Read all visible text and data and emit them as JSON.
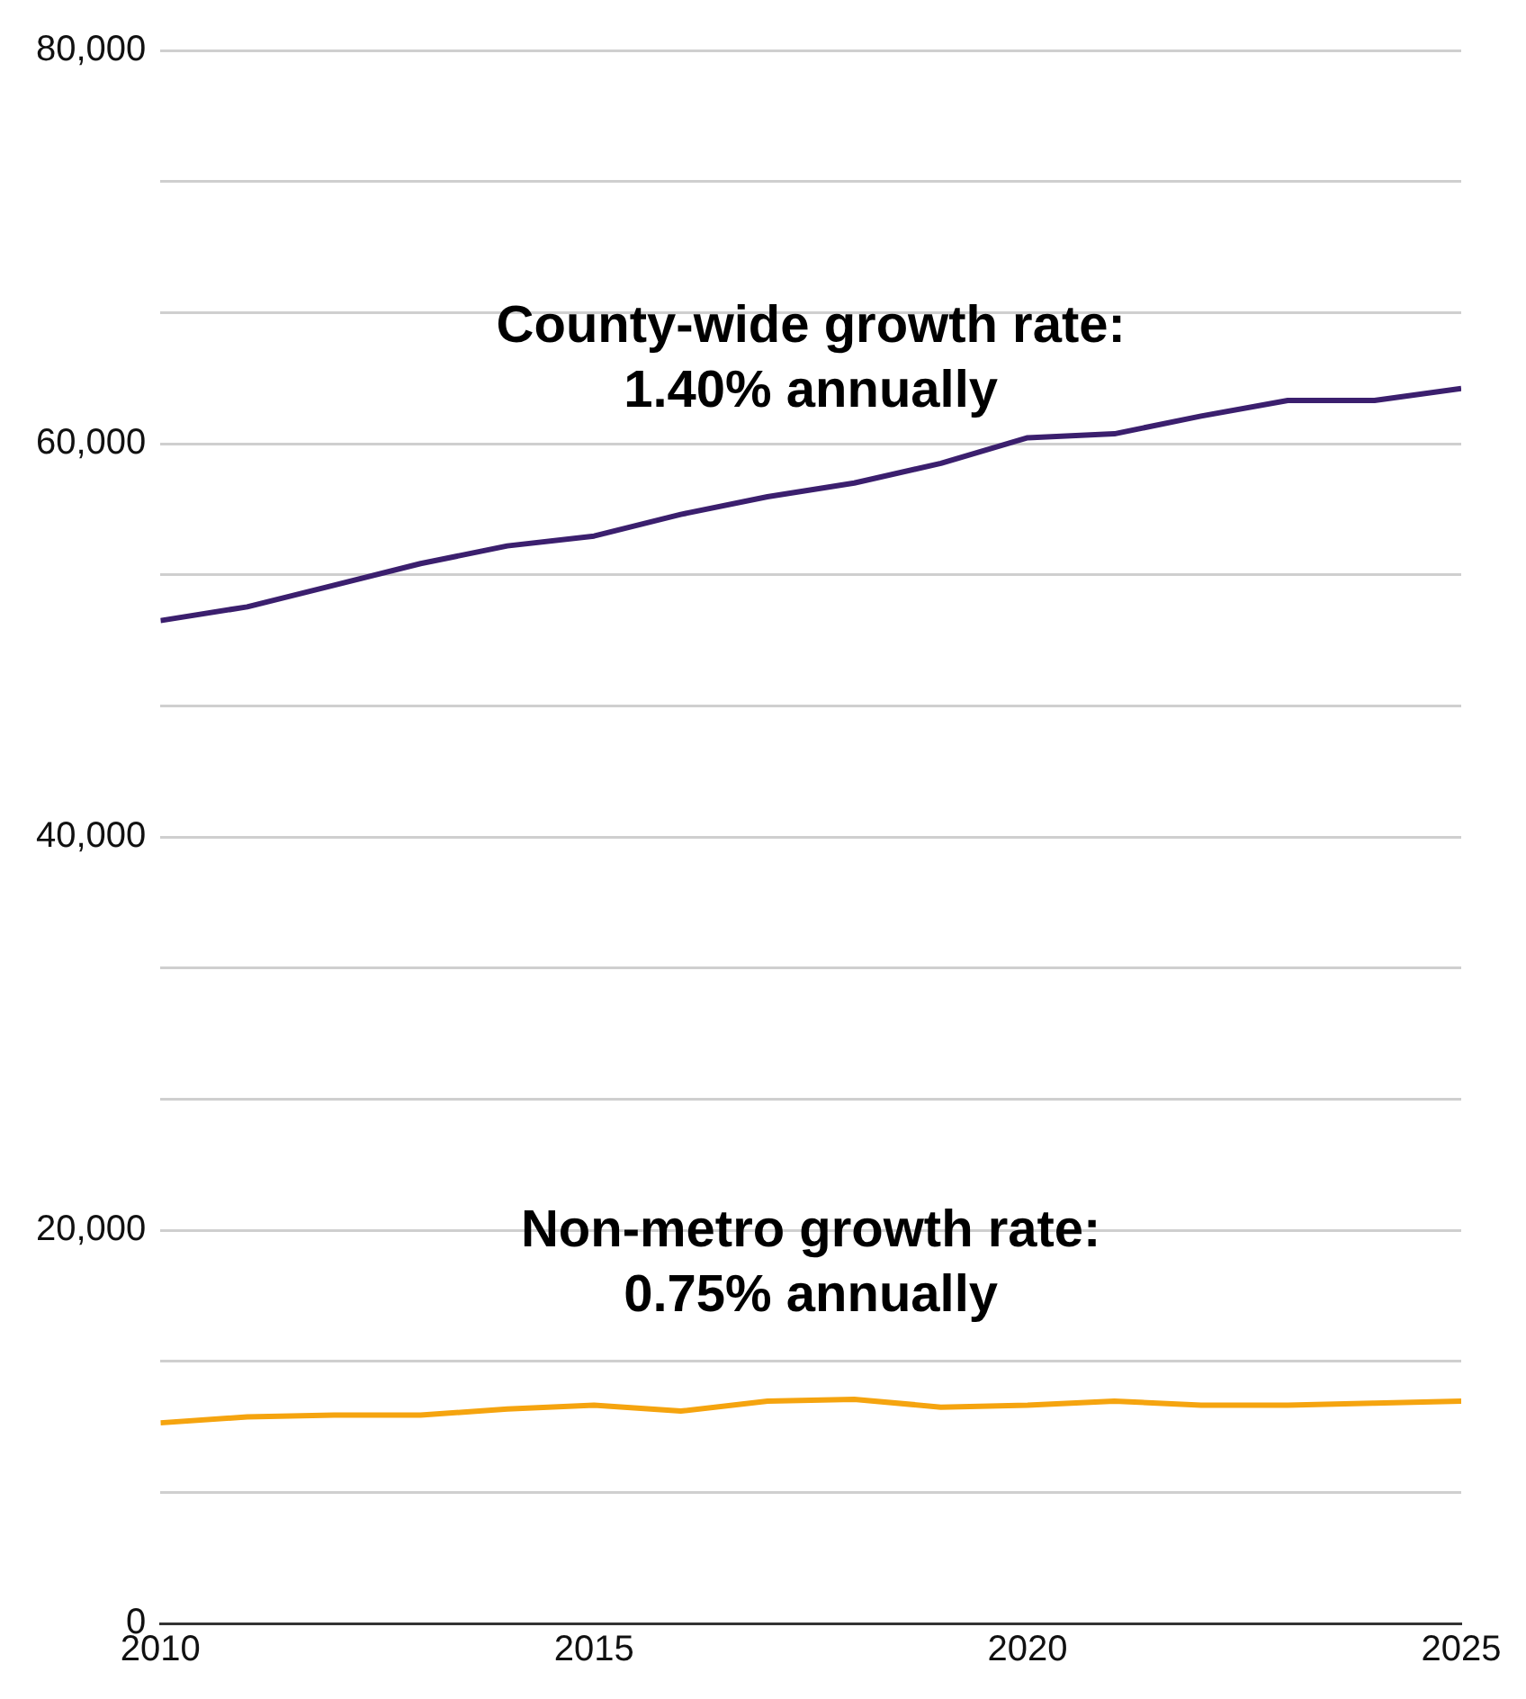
{
  "chart_data": {
    "type": "line",
    "x": [
      2010,
      2011,
      2012,
      2013,
      2014,
      2015,
      2016,
      2017,
      2018,
      2019,
      2020,
      2021,
      2022,
      2023,
      2024,
      2025
    ],
    "series": [
      {
        "color": "#3b1f6e",
        "values": [
          51000,
          51700,
          52800,
          53900,
          54800,
          55300,
          56400,
          57300,
          58000,
          59000,
          60300,
          60500,
          61400,
          62200,
          62200,
          62800
        ]
      },
      {
        "color": "#f5a40f",
        "values": [
          10200,
          10500,
          10600,
          10600,
          10900,
          11100,
          10800,
          11300,
          11400,
          11000,
          11100,
          11300,
          11100,
          11100,
          11200,
          11300
        ]
      }
    ],
    "xlim": [
      2010,
      2025
    ],
    "xticks": [
      2010,
      2015,
      2020,
      2025
    ],
    "ylim": [
      0,
      80000
    ],
    "yticks": [
      {
        "value": 0,
        "label": "0"
      },
      {
        "value": 6667,
        "label": null
      },
      {
        "value": 13333,
        "label": null
      },
      {
        "value": 20000,
        "label": "20,000"
      },
      {
        "value": 26667,
        "label": null
      },
      {
        "value": 33333,
        "label": null
      },
      {
        "value": 40000,
        "label": "40,000"
      },
      {
        "value": 46667,
        "label": null
      },
      {
        "value": 53333,
        "label": null
      },
      {
        "value": 60000,
        "label": "60,000"
      },
      {
        "value": 66667,
        "label": null
      },
      {
        "value": 73333,
        "label": null
      },
      {
        "value": 80000,
        "label": "80,000"
      }
    ],
    "grid": "y",
    "legend": false,
    "marker": "none",
    "line_style": "solid",
    "annotations": [
      "County-wide growth rate:\n1.40% annually",
      "Non-metro growth rate:\n0.75% annually"
    ]
  }
}
